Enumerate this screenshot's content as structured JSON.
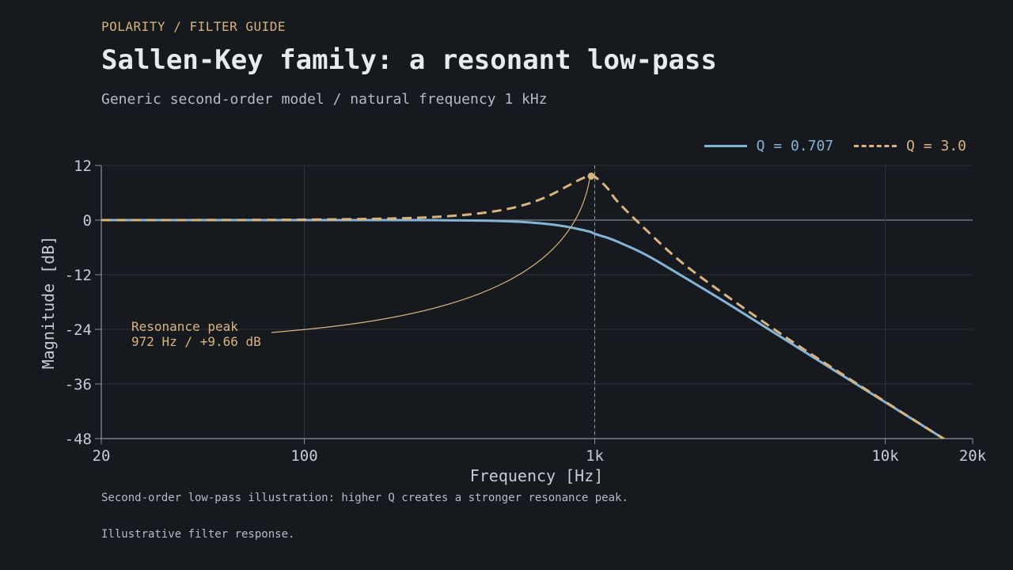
{
  "header": {
    "kicker": "POLARITY / FILTER GUIDE",
    "title": "Sallen-Key family: a resonant low-pass",
    "subtitle": "Generic second-order model / natural frequency 1 kHz"
  },
  "caption": "Second-order low-pass illustration: higher Q creates a stronger resonance peak.",
  "footnote": "Illustrative filter response.",
  "colors": {
    "background": "#16191d",
    "series_q0707": "#84b4d8",
    "series_q3": "#d9b47e",
    "grid": "#2e343b",
    "axis": "#8b939c",
    "tick_text": "#c7ccd2"
  },
  "chart_data": {
    "type": "line",
    "title": "",
    "xlabel": "Frequency [Hz]",
    "ylabel": "Magnitude [dB]",
    "x_scale": "log",
    "xlim": [
      20,
      20000
    ],
    "ylim": [
      -48,
      12
    ],
    "x_ticks": [
      {
        "value": 20,
        "label": "20"
      },
      {
        "value": 100,
        "label": "100"
      },
      {
        "value": 1000,
        "label": "1k"
      },
      {
        "value": 10000,
        "label": "10k"
      },
      {
        "value": 20000,
        "label": "20k"
      }
    ],
    "y_ticks": [
      12,
      0,
      -12,
      -24,
      -36,
      -48
    ],
    "grid": true,
    "legend_position": "top-right",
    "natural_frequency_hz": 1000,
    "x": [
      20,
      50,
      100,
      200,
      300,
      400,
      500,
      600,
      700,
      800,
      900,
      950,
      972,
      1000,
      1100,
      1200,
      1500,
      2000,
      3000,
      5000,
      10000,
      17000
    ],
    "series": [
      {
        "name": "Q = 0.707",
        "style": "solid",
        "values": [
          0.0,
          0.0,
          0.0,
          0.0,
          -0.04,
          -0.11,
          -0.26,
          -0.53,
          -0.92,
          -1.45,
          -2.11,
          -2.47,
          -2.64,
          -3.01,
          -3.85,
          -4.76,
          -7.61,
          -12.3,
          -19.1,
          -28.0,
          -40.0,
          -49.2
        ]
      },
      {
        "name": "Q = 3.0",
        "style": "dashed",
        "values": [
          0.0,
          0.02,
          0.08,
          0.34,
          0.79,
          1.48,
          2.44,
          3.76,
          5.44,
          7.37,
          9.07,
          9.56,
          9.66,
          9.54,
          7.19,
          4.02,
          -2.11,
          -9.37,
          -17.7,
          -27.5,
          -39.9,
          -49.2
        ]
      }
    ],
    "annotations": [
      {
        "lines": [
          "Resonance peak",
          "972 Hz / +9.66 dB"
        ],
        "x": 972,
        "y": 9.66
      }
    ]
  }
}
